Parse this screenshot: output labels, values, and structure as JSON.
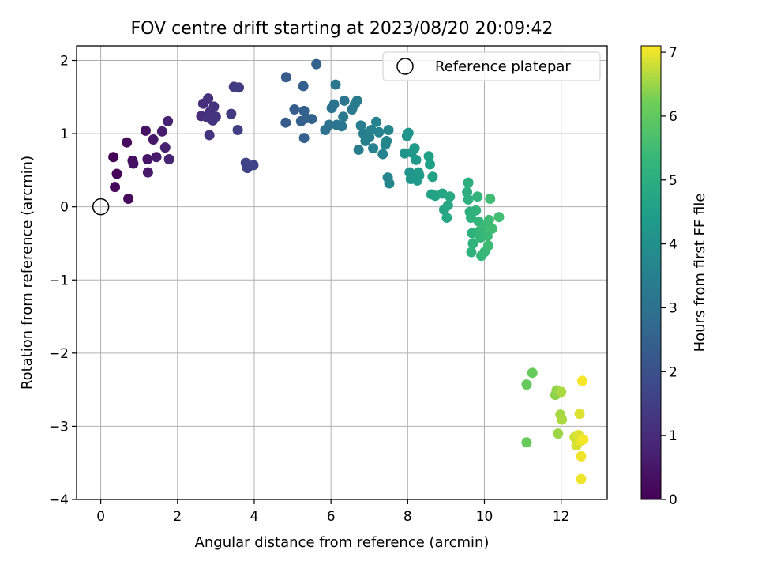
{
  "chart_data": {
    "type": "scatter",
    "title": "FOV centre drift starting at 2023/08/20 20:09:42",
    "xlabel": "Angular distance from reference (arcmin)",
    "ylabel": "Rotation from reference (arcmin)",
    "xlim": [
      -0.63,
      13.2
    ],
    "ylim": [
      -4.0,
      2.2
    ],
    "xticks": [
      "0",
      "2",
      "4",
      "6",
      "8",
      "10",
      "12"
    ],
    "xtick_values": [
      0,
      2,
      4,
      6,
      8,
      10,
      12
    ],
    "yticks": [
      "2",
      "1",
      "0",
      "−1",
      "−2",
      "−3",
      "−4"
    ],
    "ytick_values": [
      2,
      1,
      0,
      -1,
      -2,
      -3,
      -4
    ],
    "grid": true,
    "legend": {
      "placement": "top-right",
      "label": "Reference platepar"
    },
    "reference_point": {
      "x": 0,
      "y": 0
    },
    "colorbar": {
      "label": "Hours from first FF file",
      "range": [
        0,
        7.1
      ],
      "ticks": [
        "0",
        "1",
        "2",
        "3",
        "4",
        "5",
        "6",
        "7"
      ],
      "tick_values": [
        0,
        1,
        2,
        3,
        4,
        5,
        6,
        7
      ],
      "colormap": "viridis"
    },
    "points": [
      {
        "x": 0.33,
        "y": 0.68,
        "h": 0.05
      },
      {
        "x": 0.42,
        "y": 0.45,
        "h": 0.1
      },
      {
        "x": 0.37,
        "y": 0.27,
        "h": 0.15
      },
      {
        "x": 0.72,
        "y": 0.11,
        "h": 0.2
      },
      {
        "x": 0.68,
        "y": 0.88,
        "h": 0.25
      },
      {
        "x": 0.83,
        "y": 0.63,
        "h": 0.3
      },
      {
        "x": 0.85,
        "y": 0.59,
        "h": 0.35
      },
      {
        "x": 1.17,
        "y": 1.04,
        "h": 0.4
      },
      {
        "x": 1.22,
        "y": 0.65,
        "h": 0.45
      },
      {
        "x": 1.37,
        "y": 0.92,
        "h": 0.5
      },
      {
        "x": 1.23,
        "y": 0.47,
        "h": 0.55
      },
      {
        "x": 1.45,
        "y": 0.68,
        "h": 0.6
      },
      {
        "x": 1.6,
        "y": 1.03,
        "h": 0.65
      },
      {
        "x": 1.68,
        "y": 0.81,
        "h": 0.7
      },
      {
        "x": 1.75,
        "y": 1.17,
        "h": 0.75
      },
      {
        "x": 1.78,
        "y": 0.65,
        "h": 0.8
      },
      {
        "x": 2.62,
        "y": 1.24,
        "h": 1.0
      },
      {
        "x": 2.67,
        "y": 1.41,
        "h": 1.05
      },
      {
        "x": 2.8,
        "y": 1.48,
        "h": 1.1
      },
      {
        "x": 2.85,
        "y": 1.3,
        "h": 1.1
      },
      {
        "x": 2.92,
        "y": 1.18,
        "h": 1.15
      },
      {
        "x": 2.78,
        "y": 1.22,
        "h": 1.15
      },
      {
        "x": 2.95,
        "y": 1.37,
        "h": 1.2
      },
      {
        "x": 3.0,
        "y": 1.23,
        "h": 1.2
      },
      {
        "x": 2.83,
        "y": 0.98,
        "h": 1.2
      },
      {
        "x": 3.4,
        "y": 1.27,
        "h": 1.4
      },
      {
        "x": 3.47,
        "y": 1.64,
        "h": 1.45
      },
      {
        "x": 3.6,
        "y": 1.63,
        "h": 1.45
      },
      {
        "x": 3.57,
        "y": 1.05,
        "h": 1.5
      },
      {
        "x": 3.78,
        "y": 0.6,
        "h": 1.6
      },
      {
        "x": 3.82,
        "y": 0.53,
        "h": 1.6
      },
      {
        "x": 3.98,
        "y": 0.57,
        "h": 1.65
      },
      {
        "x": 4.83,
        "y": 1.77,
        "h": 2.3
      },
      {
        "x": 4.82,
        "y": 1.15,
        "h": 2.3
      },
      {
        "x": 5.05,
        "y": 1.33,
        "h": 2.35
      },
      {
        "x": 5.22,
        "y": 1.17,
        "h": 2.4
      },
      {
        "x": 5.28,
        "y": 1.65,
        "h": 2.4
      },
      {
        "x": 5.3,
        "y": 1.31,
        "h": 2.45
      },
      {
        "x": 5.35,
        "y": 1.21,
        "h": 2.45
      },
      {
        "x": 5.3,
        "y": 0.94,
        "h": 2.45
      },
      {
        "x": 5.5,
        "y": 1.2,
        "h": 2.5
      },
      {
        "x": 5.62,
        "y": 1.95,
        "h": 2.5
      },
      {
        "x": 5.85,
        "y": 1.05,
        "h": 3.0
      },
      {
        "x": 5.95,
        "y": 1.12,
        "h": 3.0
      },
      {
        "x": 6.02,
        "y": 1.35,
        "h": 3.05
      },
      {
        "x": 6.08,
        "y": 1.4,
        "h": 3.05
      },
      {
        "x": 6.12,
        "y": 1.67,
        "h": 3.1
      },
      {
        "x": 6.15,
        "y": 1.12,
        "h": 3.1
      },
      {
        "x": 6.28,
        "y": 1.1,
        "h": 3.15
      },
      {
        "x": 6.35,
        "y": 1.45,
        "h": 3.15
      },
      {
        "x": 6.32,
        "y": 1.23,
        "h": 3.2
      },
      {
        "x": 6.55,
        "y": 1.33,
        "h": 3.25
      },
      {
        "x": 6.62,
        "y": 1.4,
        "h": 3.3
      },
      {
        "x": 6.68,
        "y": 1.45,
        "h": 3.3
      },
      {
        "x": 6.72,
        "y": 0.78,
        "h": 3.35
      },
      {
        "x": 6.78,
        "y": 1.11,
        "h": 3.4
      },
      {
        "x": 6.85,
        "y": 1.0,
        "h": 3.4
      },
      {
        "x": 6.9,
        "y": 0.9,
        "h": 3.45
      },
      {
        "x": 7.0,
        "y": 0.95,
        "h": 3.45
      },
      {
        "x": 7.05,
        "y": 1.05,
        "h": 3.5
      },
      {
        "x": 7.1,
        "y": 0.8,
        "h": 3.5
      },
      {
        "x": 7.18,
        "y": 1.16,
        "h": 3.55
      },
      {
        "x": 7.25,
        "y": 1.02,
        "h": 3.55
      },
      {
        "x": 7.35,
        "y": 0.72,
        "h": 3.6
      },
      {
        "x": 7.42,
        "y": 0.85,
        "h": 3.6
      },
      {
        "x": 7.45,
        "y": 0.9,
        "h": 3.65
      },
      {
        "x": 7.5,
        "y": 1.05,
        "h": 3.65
      },
      {
        "x": 7.48,
        "y": 0.4,
        "h": 3.7
      },
      {
        "x": 7.52,
        "y": 0.32,
        "h": 3.7
      },
      {
        "x": 7.92,
        "y": 0.73,
        "h": 4.1
      },
      {
        "x": 7.98,
        "y": 0.97,
        "h": 4.1
      },
      {
        "x": 8.02,
        "y": 1.01,
        "h": 4.15
      },
      {
        "x": 8.05,
        "y": 0.47,
        "h": 4.15
      },
      {
        "x": 8.08,
        "y": 0.38,
        "h": 4.2
      },
      {
        "x": 8.1,
        "y": 0.74,
        "h": 4.2
      },
      {
        "x": 8.18,
        "y": 0.8,
        "h": 4.25
      },
      {
        "x": 8.22,
        "y": 0.64,
        "h": 4.25
      },
      {
        "x": 8.25,
        "y": 0.36,
        "h": 4.3
      },
      {
        "x": 8.28,
        "y": 0.47,
        "h": 4.3
      },
      {
        "x": 8.3,
        "y": 0.43,
        "h": 4.35
      },
      {
        "x": 8.55,
        "y": 0.69,
        "h": 4.5
      },
      {
        "x": 8.58,
        "y": 0.58,
        "h": 4.5
      },
      {
        "x": 8.62,
        "y": 0.17,
        "h": 4.55
      },
      {
        "x": 8.65,
        "y": 0.41,
        "h": 4.55
      },
      {
        "x": 8.72,
        "y": 0.15,
        "h": 4.6
      },
      {
        "x": 8.9,
        "y": 0.18,
        "h": 4.7
      },
      {
        "x": 8.95,
        "y": -0.04,
        "h": 4.7
      },
      {
        "x": 9.02,
        "y": -0.15,
        "h": 4.75
      },
      {
        "x": 9.05,
        "y": 0.02,
        "h": 4.75
      },
      {
        "x": 9.1,
        "y": 0.14,
        "h": 4.8
      },
      {
        "x": 9.58,
        "y": 0.33,
        "h": 5.0
      },
      {
        "x": 9.55,
        "y": 0.2,
        "h": 5.0
      },
      {
        "x": 9.58,
        "y": 0.1,
        "h": 5.05
      },
      {
        "x": 9.62,
        "y": -0.07,
        "h": 5.05
      },
      {
        "x": 9.65,
        "y": -0.15,
        "h": 5.1
      },
      {
        "x": 9.68,
        "y": -0.36,
        "h": 5.1
      },
      {
        "x": 9.7,
        "y": -0.5,
        "h": 5.15
      },
      {
        "x": 9.66,
        "y": -0.62,
        "h": 5.15
      },
      {
        "x": 9.78,
        "y": -0.05,
        "h": 5.2
      },
      {
        "x": 9.82,
        "y": 0.14,
        "h": 5.2
      },
      {
        "x": 9.85,
        "y": -0.2,
        "h": 5.25
      },
      {
        "x": 9.88,
        "y": -0.33,
        "h": 5.25
      },
      {
        "x": 9.9,
        "y": -0.42,
        "h": 5.3
      },
      {
        "x": 9.92,
        "y": -0.67,
        "h": 5.3
      },
      {
        "x": 9.95,
        "y": -0.28,
        "h": 5.35
      },
      {
        "x": 10.0,
        "y": -0.62,
        "h": 5.35
      },
      {
        "x": 10.05,
        "y": -0.26,
        "h": 5.4
      },
      {
        "x": 10.08,
        "y": -0.4,
        "h": 5.4
      },
      {
        "x": 10.1,
        "y": -0.53,
        "h": 5.45
      },
      {
        "x": 10.12,
        "y": -0.18,
        "h": 5.45
      },
      {
        "x": 10.15,
        "y": 0.11,
        "h": 5.5
      },
      {
        "x": 10.2,
        "y": -0.3,
        "h": 5.5
      },
      {
        "x": 10.38,
        "y": -0.14,
        "h": 5.55
      },
      {
        "x": 11.1,
        "y": -2.43,
        "h": 6.05
      },
      {
        "x": 11.1,
        "y": -3.22,
        "h": 6.1
      },
      {
        "x": 11.25,
        "y": -2.27,
        "h": 6.1
      },
      {
        "x": 11.85,
        "y": -2.57,
        "h": 6.4
      },
      {
        "x": 11.88,
        "y": -2.51,
        "h": 6.45
      },
      {
        "x": 11.92,
        "y": -3.1,
        "h": 6.5
      },
      {
        "x": 11.98,
        "y": -2.84,
        "h": 6.55
      },
      {
        "x": 12.0,
        "y": -2.53,
        "h": 6.6
      },
      {
        "x": 12.02,
        "y": -2.91,
        "h": 6.6
      },
      {
        "x": 12.35,
        "y": -3.15,
        "h": 6.8
      },
      {
        "x": 12.4,
        "y": -3.26,
        "h": 6.85
      },
      {
        "x": 12.45,
        "y": -3.12,
        "h": 6.9
      },
      {
        "x": 12.48,
        "y": -2.83,
        "h": 6.9
      },
      {
        "x": 12.5,
        "y": -3.2,
        "h": 6.95
      },
      {
        "x": 12.52,
        "y": -3.41,
        "h": 7.0
      },
      {
        "x": 12.52,
        "y": -3.72,
        "h": 7.0
      },
      {
        "x": 12.55,
        "y": -2.38,
        "h": 7.05
      },
      {
        "x": 12.58,
        "y": -3.18,
        "h": 7.05
      }
    ]
  }
}
